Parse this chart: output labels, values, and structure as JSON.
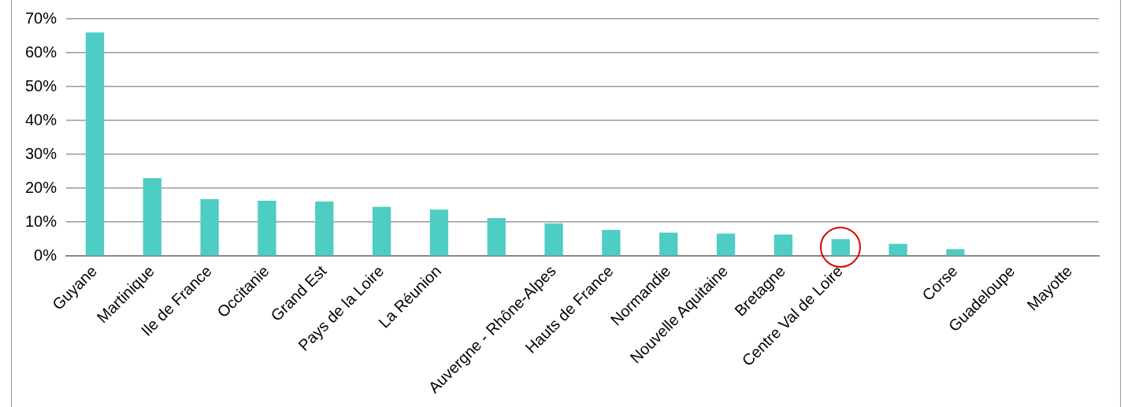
{
  "chart_data": {
    "type": "bar",
    "categories": [
      "Guyane",
      "Martinique",
      "Ile de France",
      "Occitanie",
      "Grand Est",
      "Pays de la Loire",
      "La Réunion",
      null,
      "Auvergne - Rhône-Alpes",
      "Hauts de France",
      "Normandie",
      "Nouvelle Aquitaine",
      "Bretagne",
      "Centre Val de Loire",
      null,
      "Corse",
      "Guadeloupe",
      "Mayotte"
    ],
    "values": [
      66,
      23,
      16.8,
      16.3,
      16.1,
      14.5,
      13.7,
      11.2,
      9.6,
      7.7,
      6.9,
      6.6,
      6.3,
      5.0,
      3.6,
      2.0,
      0,
      0
    ],
    "color": "#4ecdc4",
    "ylim": [
      0,
      70
    ],
    "yticks": [
      {
        "value": 0,
        "label": "0%"
      },
      {
        "value": 10,
        "label": "10%"
      },
      {
        "value": 20,
        "label": "20%"
      },
      {
        "value": 30,
        "label": "30%"
      },
      {
        "value": 40,
        "label": "40%"
      },
      {
        "value": 50,
        "label": "50%"
      },
      {
        "value": 60,
        "label": "60%"
      },
      {
        "value": 70,
        "label": "70%"
      }
    ],
    "grid": "y",
    "legend": false
  }
}
